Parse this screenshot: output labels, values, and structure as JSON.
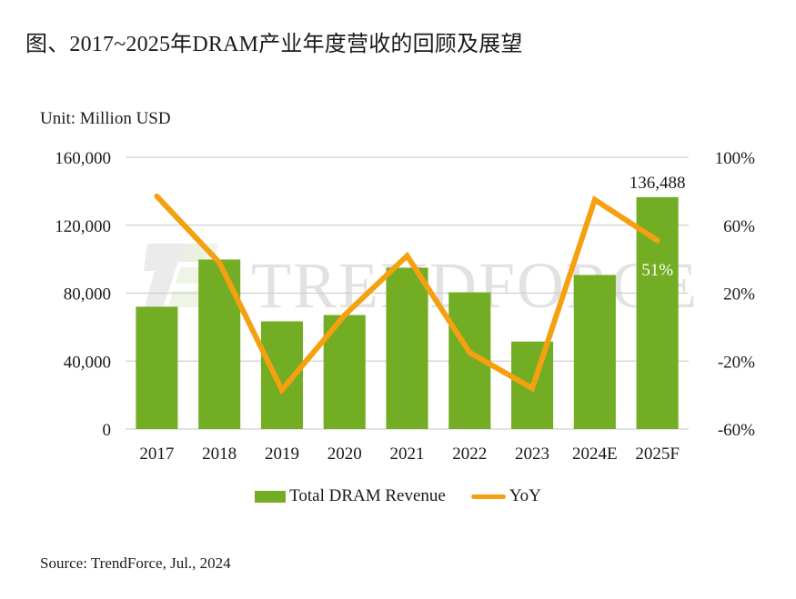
{
  "title": "图、2017~2025年DRAM产业年度营收的回顾及展望",
  "unit_label": "Unit: Million USD",
  "source": "Source: TrendForce, Jul., 2024",
  "watermark": "TRENDFORCE",
  "colors": {
    "bar": "#72ad23",
    "line": "#f5a011",
    "grid": "#d0d0d0",
    "watermark": "#e2e2e2"
  },
  "chart_data": {
    "type": "bar",
    "title": "图、2017~2025年DRAM产业年度营收的回顾及展望",
    "xlabel": "",
    "ylabel": "Unit: Million USD",
    "y2label": "",
    "grid": true,
    "legend_position": "bottom",
    "categories": [
      "2017",
      "2018",
      "2019",
      "2020",
      "2021",
      "2022",
      "2023",
      "2024E",
      "2025F"
    ],
    "ylim": [
      0,
      160000
    ],
    "yticks": [
      "0",
      "40,000",
      "80,000",
      "120,000",
      "160,000"
    ],
    "y2lim": [
      -0.6,
      1.0
    ],
    "y2ticks": [
      "-60%",
      "-20%",
      "20%",
      "60%",
      "100%"
    ],
    "series": [
      {
        "name": "Total DRAM Revenue",
        "type": "bar",
        "axis": "left",
        "values": [
          72000,
          99800,
          63400,
          67100,
          95000,
          80500,
          51500,
          90700,
          136488
        ]
      },
      {
        "name": "YoY",
        "type": "line",
        "axis": "right",
        "values": [
          0.77,
          0.38,
          -0.37,
          0.07,
          0.42,
          -0.15,
          -0.36,
          0.75,
          0.51
        ]
      }
    ],
    "annotations": [
      {
        "category": "2025F",
        "series": "Total DRAM Revenue",
        "text": "136,488"
      },
      {
        "category": "2025F",
        "series": "YoY",
        "text": "51%"
      }
    ]
  },
  "legend": [
    {
      "label": "Total DRAM Revenue",
      "kind": "bar"
    },
    {
      "label": "YoY",
      "kind": "line"
    }
  ]
}
